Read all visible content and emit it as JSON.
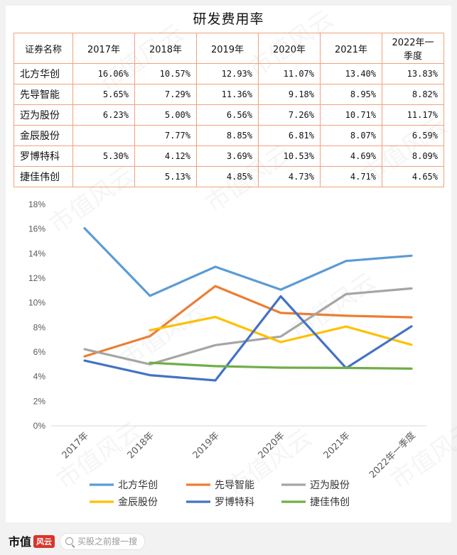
{
  "title": "研发费用率",
  "table": {
    "headers": [
      "证券名称",
      "2017年",
      "2018年",
      "2019年",
      "2020年",
      "2021年",
      "2022年一\n季度"
    ],
    "rows": [
      {
        "name": "北方华创",
        "cells": [
          "16.06%",
          "10.57%",
          "12.93%",
          "11.07%",
          "13.40%",
          "13.83%"
        ]
      },
      {
        "name": "先导智能",
        "cells": [
          "5.65%",
          "7.29%",
          "11.36%",
          "9.18%",
          "8.95%",
          "8.82%"
        ]
      },
      {
        "name": "迈为股份",
        "cells": [
          "6.23%",
          "5.00%",
          "6.56%",
          "7.26%",
          "10.71%",
          "11.17%"
        ]
      },
      {
        "name": "金辰股份",
        "cells": [
          "",
          "7.77%",
          "8.85%",
          "6.81%",
          "8.07%",
          "6.59%"
        ]
      },
      {
        "name": "罗博特科",
        "cells": [
          "5.30%",
          "4.12%",
          "3.69%",
          "10.53%",
          "4.69%",
          "8.09%"
        ]
      },
      {
        "name": "捷佳伟创",
        "cells": [
          "",
          "5.13%",
          "4.85%",
          "4.73%",
          "4.71%",
          "4.65%"
        ]
      }
    ]
  },
  "chart_data": {
    "type": "line",
    "categories": [
      "2017年",
      "2018年",
      "2019年",
      "2020年",
      "2021年",
      "2022年一季度"
    ],
    "ylim": [
      0,
      18
    ],
    "yticks": [
      "0%",
      "2%",
      "4%",
      "6%",
      "8%",
      "10%",
      "12%",
      "14%",
      "16%",
      "18%"
    ],
    "grid": false,
    "legend_position": "bottom",
    "series": [
      {
        "name": "北方华创",
        "color": "#5b9bd5",
        "values": [
          16.06,
          10.57,
          12.93,
          11.07,
          13.4,
          13.83
        ]
      },
      {
        "name": "先导智能",
        "color": "#ed7d31",
        "values": [
          5.65,
          7.29,
          11.36,
          9.18,
          8.95,
          8.82
        ]
      },
      {
        "name": "迈为股份",
        "color": "#a5a5a5",
        "values": [
          6.23,
          5.0,
          6.56,
          7.26,
          10.71,
          11.17
        ]
      },
      {
        "name": "金辰股份",
        "color": "#ffc000",
        "values": [
          null,
          7.77,
          8.85,
          6.81,
          8.07,
          6.59
        ]
      },
      {
        "name": "罗博特科",
        "color": "#4472c4",
        "values": [
          5.3,
          4.12,
          3.69,
          10.53,
          4.69,
          8.09
        ]
      },
      {
        "name": "捷佳伟创",
        "color": "#70ad47",
        "values": [
          null,
          5.13,
          4.85,
          4.73,
          4.71,
          4.65
        ]
      }
    ]
  },
  "footer": {
    "brand": "市值",
    "brand_mark": "风云",
    "search_placeholder": "买股之前搜一搜"
  },
  "watermark": "市值风云"
}
